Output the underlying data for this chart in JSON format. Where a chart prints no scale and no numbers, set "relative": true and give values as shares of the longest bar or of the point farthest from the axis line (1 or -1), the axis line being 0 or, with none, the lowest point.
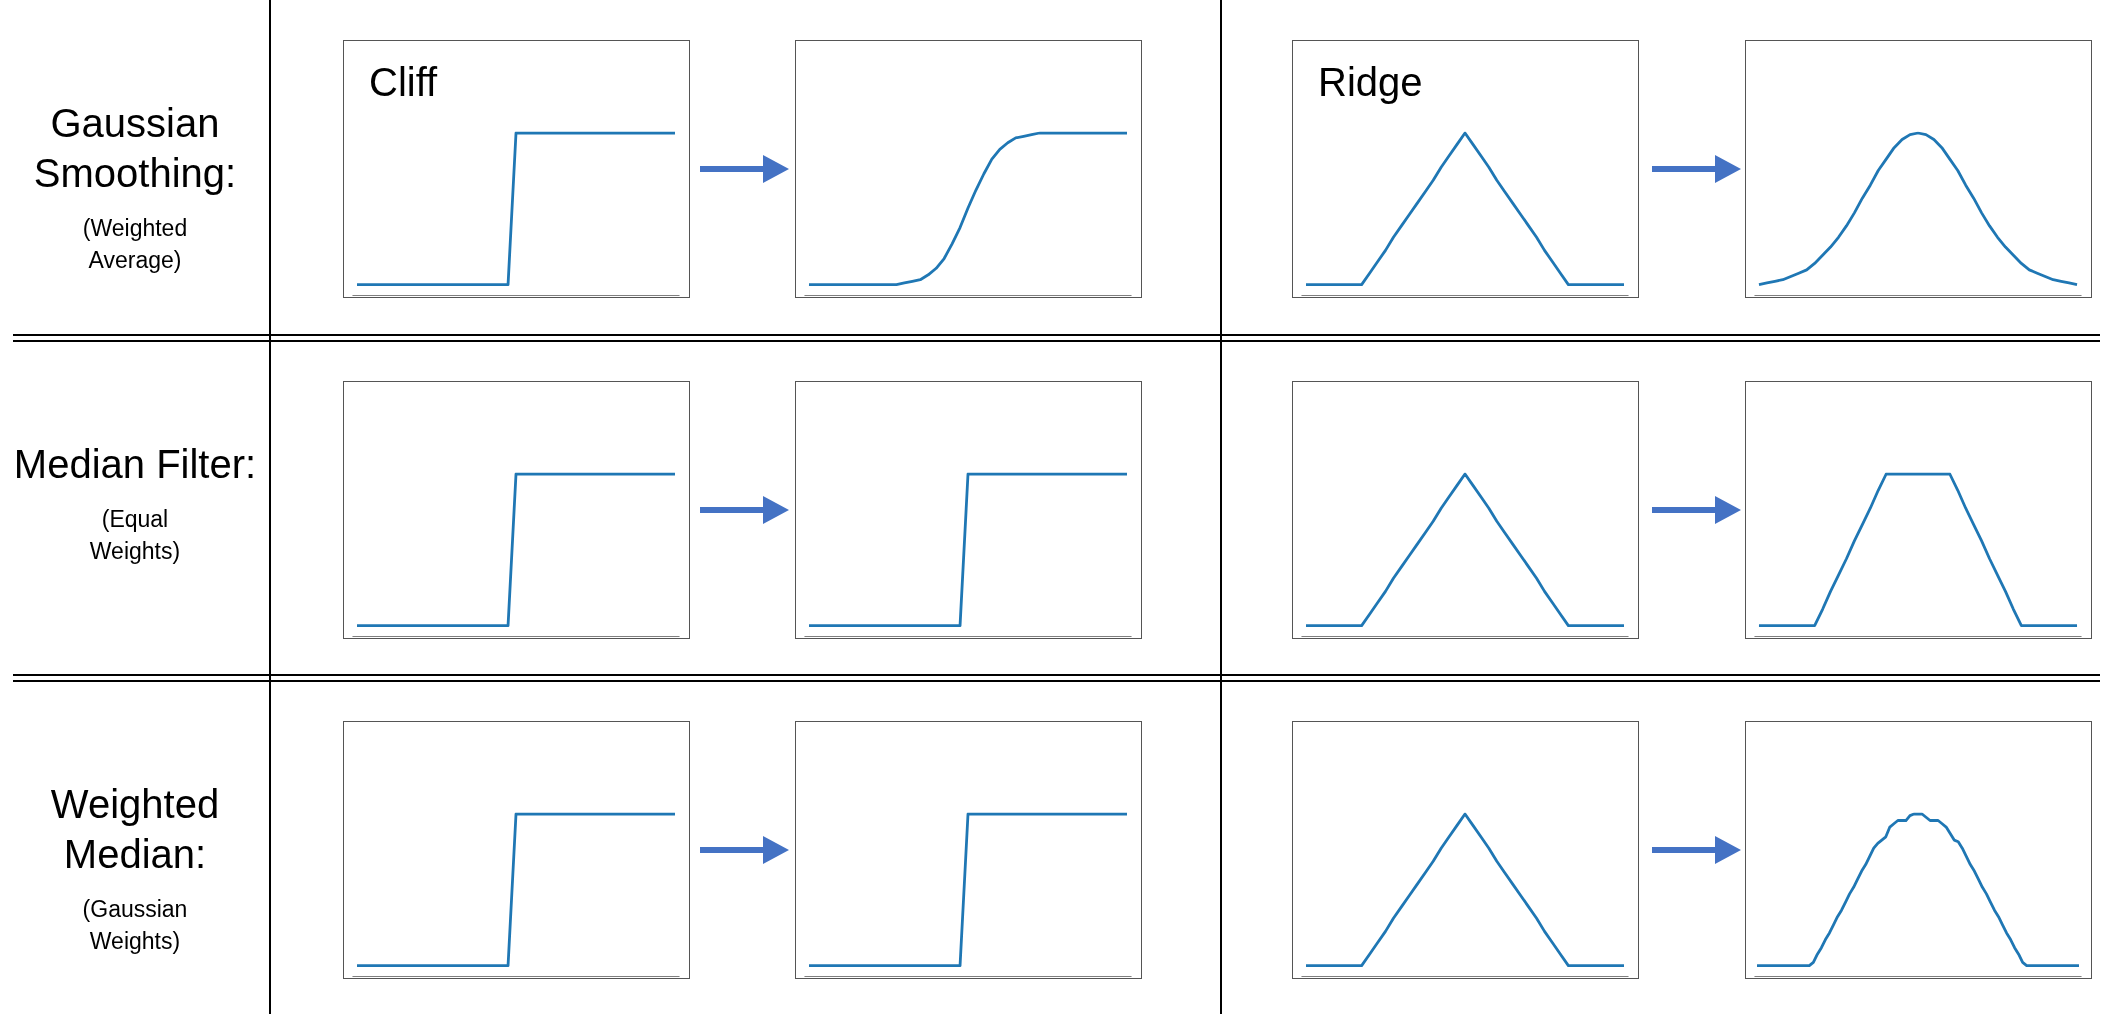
{
  "chart_data": [
    {
      "type": "line",
      "title": "Cliff",
      "annotations": [
        "Gaussian Smoothing:",
        "(Weighted Average)"
      ],
      "relative": true,
      "tick_labels": false,
      "marker": "none",
      "line_style": "solid",
      "color": "#1f77b4",
      "categories": [
        null,
        null,
        null,
        null,
        null,
        null,
        null,
        null,
        null,
        null,
        null,
        null,
        null,
        null,
        null,
        null,
        null,
        null,
        null,
        null,
        null,
        null,
        null,
        null,
        null,
        null,
        null,
        null,
        null,
        null,
        null,
        null,
        null,
        null,
        null,
        null,
        null,
        null,
        null,
        null,
        null
      ],
      "values": [
        0.07,
        0.07,
        0.07,
        0.07,
        0.07,
        0.07,
        0.07,
        0.07,
        0.07,
        0.07,
        0.07,
        0.07,
        0.07,
        0.07,
        0.07,
        0.07,
        0.07,
        0.07,
        0.07,
        0.07,
        1,
        1,
        1,
        1,
        1,
        1,
        1,
        1,
        1,
        1,
        1,
        1,
        1,
        1,
        1,
        1,
        1,
        1,
        1,
        1,
        1
      ]
    },
    {
      "type": "line",
      "relative": true,
      "tick_labels": false,
      "marker": "none",
      "line_style": "solid",
      "color": "#1f77b4",
      "categories": [
        null,
        null,
        null,
        null,
        null,
        null,
        null,
        null,
        null,
        null,
        null,
        null,
        null,
        null,
        null,
        null,
        null,
        null,
        null,
        null,
        null,
        null,
        null,
        null,
        null,
        null,
        null,
        null,
        null,
        null,
        null,
        null,
        null,
        null,
        null,
        null,
        null,
        null,
        null,
        null,
        null
      ],
      "values": [
        0.07,
        0.07,
        0.07,
        0.07,
        0.07,
        0.07,
        0.07,
        0.07,
        0.07,
        0.07,
        0.07,
        0.07,
        0.08,
        0.09,
        0.1,
        0.13,
        0.17,
        0.23,
        0.32,
        0.42,
        0.54,
        0.65,
        0.75,
        0.84,
        0.9,
        0.94,
        0.97,
        0.98,
        0.99,
        1,
        1,
        1,
        1,
        1,
        1,
        1,
        1,
        1,
        1,
        1,
        1
      ]
    },
    {
      "type": "line",
      "title": "Ridge",
      "relative": true,
      "tick_labels": false,
      "marker": "none",
      "line_style": "solid",
      "color": "#1f77b4",
      "categories": [
        null,
        null,
        null,
        null,
        null,
        null,
        null,
        null,
        null,
        null,
        null,
        null,
        null,
        null,
        null,
        null,
        null,
        null,
        null,
        null,
        null,
        null,
        null,
        null,
        null,
        null,
        null,
        null,
        null,
        null,
        null,
        null,
        null,
        null,
        null,
        null,
        null,
        null,
        null,
        null,
        null
      ],
      "values": [
        0.07,
        0.07,
        0.07,
        0.07,
        0.07,
        0.07,
        0.07,
        0.07,
        0.14,
        0.21,
        0.28,
        0.36,
        0.43,
        0.5,
        0.57,
        0.64,
        0.71,
        0.79,
        0.86,
        0.93,
        1,
        0.93,
        0.86,
        0.79,
        0.71,
        0.64,
        0.57,
        0.5,
        0.43,
        0.36,
        0.28,
        0.21,
        0.14,
        0.07,
        0.07,
        0.07,
        0.07,
        0.07,
        0.07,
        0.07,
        0.07
      ]
    },
    {
      "type": "line",
      "relative": true,
      "tick_labels": false,
      "marker": "none",
      "line_style": "solid",
      "color": "#1f77b4",
      "categories": [
        null,
        null,
        null,
        null,
        null,
        null,
        null,
        null,
        null,
        null,
        null,
        null,
        null,
        null,
        null,
        null,
        null,
        null,
        null,
        null,
        null,
        null,
        null,
        null,
        null,
        null,
        null,
        null,
        null,
        null,
        null,
        null,
        null,
        null,
        null,
        null,
        null,
        null,
        null,
        null,
        null
      ],
      "values": [
        0.07,
        0.08,
        0.09,
        0.1,
        0.12,
        0.14,
        0.16,
        0.2,
        0.25,
        0.3,
        0.36,
        0.43,
        0.51,
        0.6,
        0.68,
        0.77,
        0.84,
        0.91,
        0.96,
        0.99,
        1,
        0.99,
        0.96,
        0.91,
        0.84,
        0.77,
        0.68,
        0.6,
        0.51,
        0.43,
        0.36,
        0.3,
        0.25,
        0.2,
        0.16,
        0.14,
        0.12,
        0.1,
        0.09,
        0.08,
        0.07
      ]
    },
    {
      "type": "line",
      "annotations": [
        "Median Filter:",
        "(Equal Weights)"
      ],
      "relative": true,
      "tick_labels": false,
      "marker": "none",
      "line_style": "solid",
      "color": "#1f77b4",
      "categories": [
        null,
        null,
        null,
        null,
        null,
        null,
        null,
        null,
        null,
        null,
        null,
        null,
        null,
        null,
        null,
        null,
        null,
        null,
        null,
        null,
        null,
        null,
        null,
        null,
        null,
        null,
        null,
        null,
        null,
        null,
        null,
        null,
        null,
        null,
        null,
        null,
        null,
        null,
        null,
        null,
        null
      ],
      "values": [
        0.07,
        0.07,
        0.07,
        0.07,
        0.07,
        0.07,
        0.07,
        0.07,
        0.07,
        0.07,
        0.07,
        0.07,
        0.07,
        0.07,
        0.07,
        0.07,
        0.07,
        0.07,
        0.07,
        0.07,
        1,
        1,
        1,
        1,
        1,
        1,
        1,
        1,
        1,
        1,
        1,
        1,
        1,
        1,
        1,
        1,
        1,
        1,
        1,
        1,
        1
      ]
    },
    {
      "type": "line",
      "relative": true,
      "tick_labels": false,
      "marker": "none",
      "line_style": "solid",
      "color": "#1f77b4",
      "categories": [
        null,
        null,
        null,
        null,
        null,
        null,
        null,
        null,
        null,
        null,
        null,
        null,
        null,
        null,
        null,
        null,
        null,
        null,
        null,
        null,
        null,
        null,
        null,
        null,
        null,
        null,
        null,
        null,
        null,
        null,
        null,
        null,
        null,
        null,
        null,
        null,
        null,
        null,
        null,
        null,
        null
      ],
      "values": [
        0.07,
        0.07,
        0.07,
        0.07,
        0.07,
        0.07,
        0.07,
        0.07,
        0.07,
        0.07,
        0.07,
        0.07,
        0.07,
        0.07,
        0.07,
        0.07,
        0.07,
        0.07,
        0.07,
        0.07,
        1,
        1,
        1,
        1,
        1,
        1,
        1,
        1,
        1,
        1,
        1,
        1,
        1,
        1,
        1,
        1,
        1,
        1,
        1,
        1,
        1
      ]
    },
    {
      "type": "line",
      "relative": true,
      "tick_labels": false,
      "marker": "none",
      "line_style": "solid",
      "color": "#1f77b4",
      "categories": [
        null,
        null,
        null,
        null,
        null,
        null,
        null,
        null,
        null,
        null,
        null,
        null,
        null,
        null,
        null,
        null,
        null,
        null,
        null,
        null,
        null,
        null,
        null,
        null,
        null,
        null,
        null,
        null,
        null,
        null,
        null,
        null,
        null,
        null,
        null,
        null,
        null,
        null,
        null,
        null,
        null
      ],
      "values": [
        0.07,
        0.07,
        0.07,
        0.07,
        0.07,
        0.07,
        0.07,
        0.07,
        0.14,
        0.21,
        0.28,
        0.36,
        0.43,
        0.5,
        0.57,
        0.64,
        0.71,
        0.79,
        0.86,
        0.93,
        1,
        0.93,
        0.86,
        0.79,
        0.71,
        0.64,
        0.57,
        0.5,
        0.43,
        0.36,
        0.28,
        0.21,
        0.14,
        0.07,
        0.07,
        0.07,
        0.07,
        0.07,
        0.07,
        0.07,
        0.07
      ]
    },
    {
      "type": "line",
      "relative": true,
      "tick_labels": false,
      "marker": "none",
      "line_style": "solid",
      "color": "#1f77b4",
      "categories": [
        null,
        null,
        null,
        null,
        null,
        null,
        null,
        null,
        null,
        null,
        null,
        null,
        null,
        null,
        null,
        null,
        null,
        null,
        null,
        null,
        null,
        null,
        null,
        null,
        null,
        null,
        null,
        null,
        null,
        null,
        null,
        null,
        null,
        null,
        null,
        null,
        null,
        null,
        null,
        null,
        null
      ],
      "values": [
        0.07,
        0.07,
        0.07,
        0.07,
        0.07,
        0.07,
        0.07,
        0.07,
        0.17,
        0.28,
        0.38,
        0.48,
        0.59,
        0.69,
        0.79,
        0.9,
        1,
        1,
        1,
        1,
        1,
        1,
        1,
        1,
        1,
        0.9,
        0.79,
        0.69,
        0.59,
        0.48,
        0.38,
        0.28,
        0.17,
        0.07,
        0.07,
        0.07,
        0.07,
        0.07,
        0.07,
        0.07,
        0.07
      ]
    },
    {
      "type": "line",
      "annotations": [
        "Weighted Median:",
        "(Gaussian Weights)"
      ],
      "relative": true,
      "tick_labels": false,
      "marker": "none",
      "line_style": "solid",
      "color": "#1f77b4",
      "categories": [
        null,
        null,
        null,
        null,
        null,
        null,
        null,
        null,
        null,
        null,
        null,
        null,
        null,
        null,
        null,
        null,
        null,
        null,
        null,
        null,
        null,
        null,
        null,
        null,
        null,
        null,
        null,
        null,
        null,
        null,
        null,
        null,
        null,
        null,
        null,
        null,
        null,
        null,
        null,
        null,
        null
      ],
      "values": [
        0.07,
        0.07,
        0.07,
        0.07,
        0.07,
        0.07,
        0.07,
        0.07,
        0.07,
        0.07,
        0.07,
        0.07,
        0.07,
        0.07,
        0.07,
        0.07,
        0.07,
        0.07,
        0.07,
        0.07,
        1,
        1,
        1,
        1,
        1,
        1,
        1,
        1,
        1,
        1,
        1,
        1,
        1,
        1,
        1,
        1,
        1,
        1,
        1,
        1,
        1
      ]
    },
    {
      "type": "line",
      "relative": true,
      "tick_labels": false,
      "marker": "none",
      "line_style": "solid",
      "color": "#1f77b4",
      "categories": [
        null,
        null,
        null,
        null,
        null,
        null,
        null,
        null,
        null,
        null,
        null,
        null,
        null,
        null,
        null,
        null,
        null,
        null,
        null,
        null,
        null,
        null,
        null,
        null,
        null,
        null,
        null,
        null,
        null,
        null,
        null,
        null,
        null,
        null,
        null,
        null,
        null,
        null,
        null,
        null,
        null
      ],
      "values": [
        0.07,
        0.07,
        0.07,
        0.07,
        0.07,
        0.07,
        0.07,
        0.07,
        0.07,
        0.07,
        0.07,
        0.07,
        0.07,
        0.07,
        0.07,
        0.07,
        0.07,
        0.07,
        0.07,
        0.07,
        1,
        1,
        1,
        1,
        1,
        1,
        1,
        1,
        1,
        1,
        1,
        1,
        1,
        1,
        1,
        1,
        1,
        1,
        1,
        1,
        1
      ]
    },
    {
      "type": "line",
      "relative": true,
      "tick_labels": false,
      "marker": "none",
      "line_style": "solid",
      "color": "#1f77b4",
      "categories": [
        null,
        null,
        null,
        null,
        null,
        null,
        null,
        null,
        null,
        null,
        null,
        null,
        null,
        null,
        null,
        null,
        null,
        null,
        null,
        null,
        null,
        null,
        null,
        null,
        null,
        null,
        null,
        null,
        null,
        null,
        null,
        null,
        null,
        null,
        null,
        null,
        null,
        null,
        null,
        null,
        null
      ],
      "values": [
        0.07,
        0.07,
        0.07,
        0.07,
        0.07,
        0.07,
        0.07,
        0.07,
        0.14,
        0.21,
        0.28,
        0.36,
        0.43,
        0.5,
        0.57,
        0.64,
        0.71,
        0.79,
        0.86,
        0.93,
        1,
        0.93,
        0.86,
        0.79,
        0.71,
        0.64,
        0.57,
        0.5,
        0.43,
        0.36,
        0.28,
        0.21,
        0.14,
        0.07,
        0.07,
        0.07,
        0.07,
        0.07,
        0.07,
        0.07,
        0.07
      ]
    },
    {
      "type": "line",
      "relative": true,
      "tick_labels": false,
      "marker": "none",
      "line_style": "solid",
      "color": "#1f77b4",
      "categories": [
        null,
        null,
        null,
        null,
        null,
        null,
        null,
        null,
        null,
        null,
        null,
        null,
        null,
        null,
        null,
        null,
        null,
        null,
        null,
        null,
        null,
        null,
        null,
        null,
        null,
        null,
        null,
        null,
        null,
        null,
        null,
        null,
        null,
        null,
        null,
        null,
        null,
        null,
        null,
        null,
        null,
        null,
        null,
        null,
        null,
        null,
        null,
        null,
        null,
        null,
        null,
        null,
        null,
        null,
        null,
        null,
        null,
        null,
        null,
        null,
        null,
        null,
        null,
        null,
        null,
        null,
        null,
        null,
        null,
        null,
        null,
        null,
        null,
        null,
        null,
        null,
        null,
        null,
        null,
        null,
        null
      ],
      "values": [
        0.07,
        0.07,
        0.07,
        0.07,
        0.07,
        0.07,
        0.07,
        0.07,
        0.07,
        0.07,
        0.07,
        0.07,
        0.07,
        0.07,
        0.09,
        0.14,
        0.18,
        0.23,
        0.27,
        0.32,
        0.37,
        0.41,
        0.46,
        0.51,
        0.55,
        0.6,
        0.65,
        0.69,
        0.74,
        0.79,
        0.82,
        0.84,
        0.86,
        0.92,
        0.94,
        0.96,
        0.96,
        0.96,
        0.99,
        1,
        1,
        1,
        0.98,
        0.96,
        0.96,
        0.96,
        0.94,
        0.92,
        0.88,
        0.84,
        0.83,
        0.79,
        0.74,
        0.69,
        0.65,
        0.6,
        0.55,
        0.51,
        0.46,
        0.41,
        0.37,
        0.32,
        0.27,
        0.23,
        0.18,
        0.14,
        0.09,
        0.07,
        0.07,
        0.07,
        0.07,
        0.07,
        0.07,
        0.07,
        0.07,
        0.07,
        0.07,
        0.07,
        0.07,
        0.07,
        0.07
      ]
    }
  ]
}
